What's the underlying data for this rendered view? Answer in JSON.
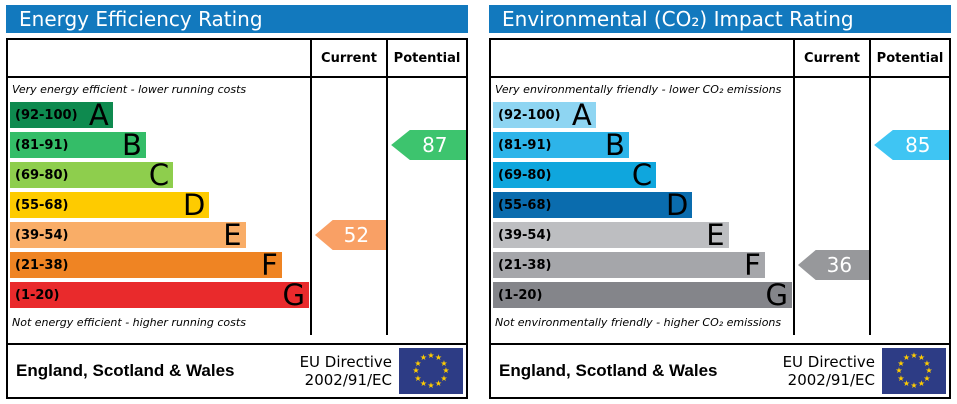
{
  "flag": {
    "bg": "#2d3c85",
    "star_color": "#ffcc00",
    "star_glyph": "★"
  },
  "header_color": "#1279be",
  "panels": [
    {
      "title": "Energy Efficiency Rating",
      "columns": {
        "current": "Current",
        "potential": "Potential"
      },
      "top_note": "Very energy efficient - lower running costs",
      "bottom_note": "Not energy efficient - higher running costs",
      "bands": [
        {
          "range": "(92-100)",
          "letter": "A",
          "color": "#0e8a4f",
          "width_pct": 34
        },
        {
          "range": "(81-91)",
          "letter": "B",
          "color": "#34bd68",
          "width_pct": 45
        },
        {
          "range": "(69-80)",
          "letter": "C",
          "color": "#8ece4d",
          "width_pct": 54
        },
        {
          "range": "(55-68)",
          "letter": "D",
          "color": "#fecb00",
          "width_pct": 66
        },
        {
          "range": "(39-54)",
          "letter": "E",
          "color": "#f9ad67",
          "width_pct": 78
        },
        {
          "range": "(21-38)",
          "letter": "F",
          "color": "#ef8423",
          "width_pct": 90
        },
        {
          "range": "(1-20)",
          "letter": "G",
          "color": "#e92a2c",
          "width_pct": 99
        }
      ],
      "current": {
        "value": "52",
        "band_index": 4,
        "color": "#f9a065"
      },
      "potential": {
        "value": "87",
        "band_index": 1,
        "color": "#3dc46e"
      },
      "footer": {
        "region": "England, Scotland & Wales",
        "directive_line1": "EU Directive",
        "directive_line2": "2002/91/EC"
      }
    },
    {
      "title": "Environmental (CO₂) Impact Rating",
      "columns": {
        "current": "Current",
        "potential": "Potential"
      },
      "top_note": "Very environmentally friendly - lower CO₂ emissions",
      "bottom_note": "Not environmentally friendly - higher CO₂ emissions",
      "bands": [
        {
          "range": "(92-100)",
          "letter": "A",
          "color": "#8ed5f2",
          "width_pct": 34
        },
        {
          "range": "(81-91)",
          "letter": "B",
          "color": "#2db4e9",
          "width_pct": 45
        },
        {
          "range": "(69-80)",
          "letter": "C",
          "color": "#0fa6dd",
          "width_pct": 54
        },
        {
          "range": "(55-68)",
          "letter": "D",
          "color": "#0a6cae",
          "width_pct": 66
        },
        {
          "range": "(39-54)",
          "letter": "E",
          "color": "#bdbec1",
          "width_pct": 78
        },
        {
          "range": "(21-38)",
          "letter": "F",
          "color": "#a5a6aa",
          "width_pct": 90
        },
        {
          "range": "(1-20)",
          "letter": "G",
          "color": "#84858a",
          "width_pct": 99
        }
      ],
      "current": {
        "value": "36",
        "band_index": 5,
        "color": "#97989b"
      },
      "potential": {
        "value": "85",
        "band_index": 1,
        "color": "#3fc5f3"
      },
      "footer": {
        "region": "England, Scotland & Wales",
        "directive_line1": "EU Directive",
        "directive_line2": "2002/91/EC"
      }
    }
  ],
  "chart_data": [
    {
      "type": "bar",
      "title": "Energy Efficiency Rating",
      "categories": [
        "A (92-100)",
        "B (81-91)",
        "C (69-80)",
        "D (55-68)",
        "E (39-54)",
        "F (21-38)",
        "G (1-20)"
      ],
      "values": [
        34,
        45,
        54,
        66,
        78,
        90,
        99
      ],
      "series": [
        {
          "name": "Current",
          "values": [
            52
          ]
        },
        {
          "name": "Potential",
          "values": [
            87
          ]
        }
      ],
      "annotations": [
        "Very energy efficient - lower running costs",
        "Not energy efficient - higher running costs",
        "England, Scotland & Wales",
        "EU Directive 2002/91/EC"
      ],
      "xlabel": "",
      "ylabel": "",
      "ylim": [
        1,
        100
      ],
      "legend_position": "top-right-columns"
    },
    {
      "type": "bar",
      "title": "Environmental (CO₂) Impact Rating",
      "categories": [
        "A (92-100)",
        "B (81-91)",
        "C (69-80)",
        "D (55-68)",
        "E (39-54)",
        "F (21-38)",
        "G (1-20)"
      ],
      "values": [
        34,
        45,
        54,
        66,
        78,
        90,
        99
      ],
      "series": [
        {
          "name": "Current",
          "values": [
            36
          ]
        },
        {
          "name": "Potential",
          "values": [
            85
          ]
        }
      ],
      "annotations": [
        "Very environmentally friendly - lower CO₂ emissions",
        "Not environmentally friendly - higher CO₂ emissions",
        "England, Scotland & Wales",
        "EU Directive 2002/91/EC"
      ],
      "xlabel": "",
      "ylabel": "",
      "ylim": [
        1,
        100
      ],
      "legend_position": "top-right-columns"
    }
  ]
}
